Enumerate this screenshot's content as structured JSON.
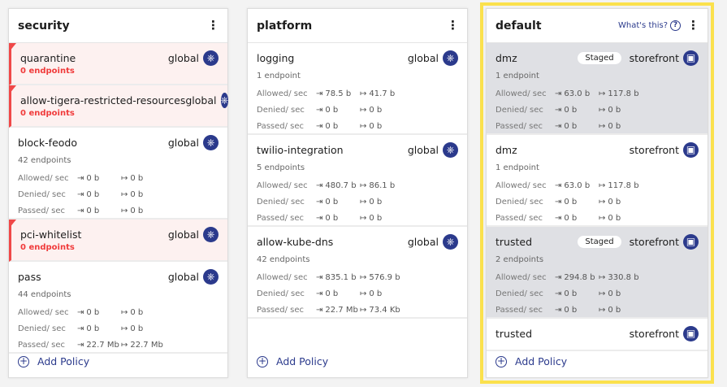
{
  "colors": {
    "accent": "#2b3a8c",
    "danger": "#f04848",
    "highlight": "#fbe14d",
    "staged_bg": "#dfe0e4"
  },
  "labels": {
    "allowed": "Allowed/ sec",
    "denied": "Denied/ sec",
    "passed": "Passed/ sec",
    "add_policy": "Add Policy",
    "whats_this": "What's this?",
    "staged": "Staged"
  },
  "icons": {
    "ingress": "ingress-arrow-icon",
    "egress": "egress-arrow-icon",
    "global": "kubernetes-global-icon",
    "namespace": "namespace-monitor-icon",
    "menu": "kebab-menu-icon",
    "help": "question-circle-icon",
    "add": "plus-circle-icon"
  },
  "tiers": [
    {
      "title": "security",
      "policies": [
        {
          "name": "quarantine",
          "scope": "global",
          "endpoints": "0 endpoints",
          "empty": true
        },
        {
          "name": "allow-tigera-restricted-resources",
          "scope": "global",
          "endpoints": "0 endpoints",
          "empty": true
        },
        {
          "name": "block-feodo",
          "scope": "global",
          "endpoints": "42 endpoints",
          "allowed": [
            "0 b",
            "0 b"
          ],
          "denied": [
            "0 b",
            "0 b"
          ],
          "passed": [
            "0 b",
            "0 b"
          ]
        },
        {
          "name": "pci-whitelist",
          "scope": "global",
          "endpoints": "0 endpoints",
          "empty": true
        },
        {
          "name": "pass",
          "scope": "global",
          "endpoints": "44 endpoints",
          "allowed": [
            "0 b",
            "0 b"
          ],
          "denied": [
            "0 b",
            "0 b"
          ],
          "passed": [
            "22.7 Mb",
            "22.7 Mb"
          ]
        }
      ]
    },
    {
      "title": "platform",
      "policies": [
        {
          "name": "logging",
          "scope": "global",
          "endpoints": "1 endpoint",
          "allowed": [
            "78.5 b",
            "41.7 b"
          ],
          "denied": [
            "0 b",
            "0 b"
          ],
          "passed": [
            "0 b",
            "0 b"
          ]
        },
        {
          "name": "twilio-integration",
          "scope": "global",
          "endpoints": "5 endpoints",
          "allowed": [
            "480.7 b",
            "86.1 b"
          ],
          "denied": [
            "0 b",
            "0 b"
          ],
          "passed": [
            "0 b",
            "0 b"
          ]
        },
        {
          "name": "allow-kube-dns",
          "scope": "global",
          "endpoints": "42 endpoints",
          "allowed": [
            "835.1 b",
            "576.9 b"
          ],
          "denied": [
            "0 b",
            "0 b"
          ],
          "passed": [
            "22.7 Mb",
            "73.4 Kb"
          ]
        }
      ]
    },
    {
      "title": "default",
      "whats_this": true,
      "highlighted": true,
      "policies": [
        {
          "name": "dmz",
          "scope": "storefront",
          "staged": true,
          "endpoints": "1 endpoint",
          "allowed": [
            "63.0 b",
            "117.8 b"
          ],
          "denied": [
            "0 b",
            "0 b"
          ],
          "passed": [
            "0 b",
            "0 b"
          ]
        },
        {
          "name": "dmz",
          "scope": "storefront",
          "endpoints": "1 endpoint",
          "allowed": [
            "63.0 b",
            "117.8 b"
          ],
          "denied": [
            "0 b",
            "0 b"
          ],
          "passed": [
            "0 b",
            "0 b"
          ]
        },
        {
          "name": "trusted",
          "scope": "storefront",
          "staged": true,
          "endpoints": "2 endpoints",
          "allowed": [
            "294.8 b",
            "330.8 b"
          ],
          "denied": [
            "0 b",
            "0 b"
          ],
          "passed": [
            "0 b",
            "0 b"
          ]
        },
        {
          "name": "trusted",
          "scope": "storefront"
        }
      ]
    }
  ]
}
